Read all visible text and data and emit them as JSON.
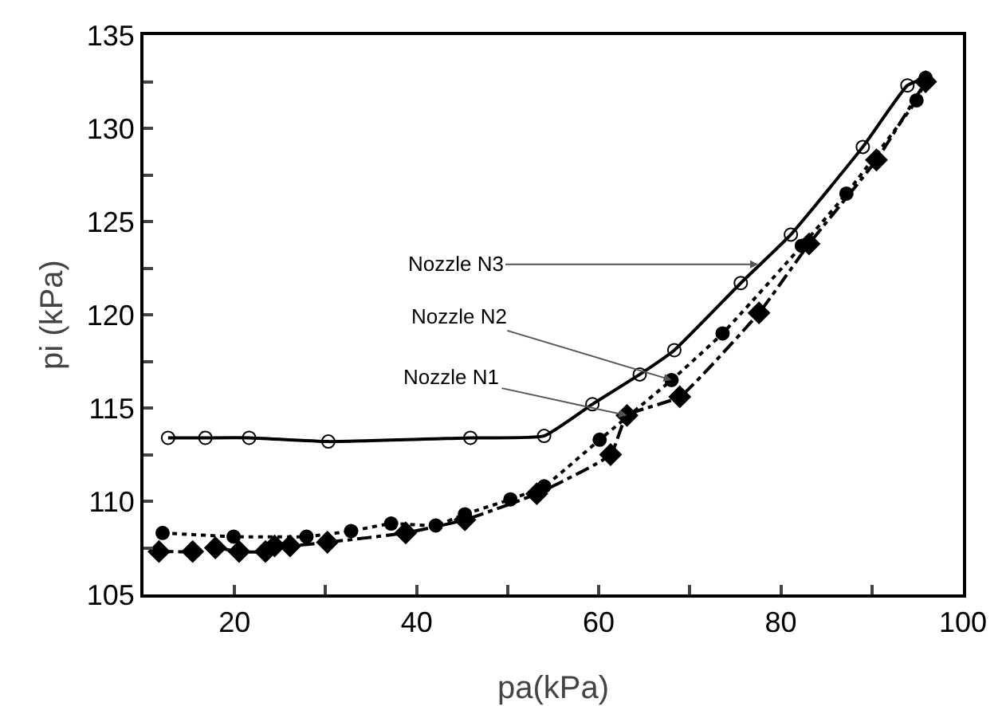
{
  "chart_data": {
    "type": "line",
    "xlabel": "pa(kPa)",
    "ylabel": "pi (kPa)",
    "xlim": [
      10,
      100
    ],
    "xticks": [
      20,
      {
        "value": 30,
        "label": null
      },
      40,
      {
        "value": 50,
        "label": null
      },
      60,
      {
        "value": 70,
        "label": null
      },
      80,
      {
        "value": 90,
        "label": null
      },
      100
    ],
    "ylim": [
      105,
      135
    ],
    "yticks": [
      105,
      {
        "value": 107.5,
        "label": null
      },
      110,
      {
        "value": 112.5,
        "label": null
      },
      115,
      {
        "value": 117.5,
        "label": null
      },
      120,
      {
        "value": 122.5,
        "label": null
      },
      125,
      {
        "value": 127.5,
        "label": null
      },
      130,
      {
        "value": 132.5,
        "label": null
      },
      135
    ],
    "grid": false,
    "series": [
      {
        "color": "#000000",
        "marker": "circle-open",
        "line_style": "solid",
        "x": [
          12.7,
          16.8,
          21.6,
          30.3,
          45.9,
          54.0,
          59.3,
          64.5,
          68.3,
          75.6,
          81.1,
          89.0,
          93.9,
          95.9
        ],
        "values": [
          113.4,
          113.4,
          113.4,
          113.2,
          113.4,
          113.5,
          115.2,
          116.8,
          118.1,
          121.7,
          124.3,
          129.0,
          132.3,
          132.7
        ]
      },
      {
        "color": "#000000",
        "marker": "circle",
        "line_style": "dotted",
        "x": [
          12.1,
          19.9,
          27.9,
          32.8,
          37.2,
          42.1,
          45.3,
          50.3,
          54.0,
          60.1,
          68.0,
          73.6,
          82.3,
          87.2,
          94.9,
          95.9
        ],
        "values": [
          108.3,
          108.1,
          108.1,
          108.4,
          108.8,
          108.7,
          109.3,
          110.1,
          110.8,
          113.3,
          116.5,
          119.0,
          123.7,
          126.5,
          131.5,
          132.6
        ]
      },
      {
        "color": "#000000",
        "marker": "diamond",
        "line_style": "dashed",
        "x": [
          11.7,
          15.4,
          17.9,
          20.5,
          23.4,
          24.4,
          26.1,
          30.2,
          38.8,
          45.3,
          53.2,
          61.3,
          63.1,
          68.9,
          77.6,
          83.1,
          90.5,
          95.9
        ],
        "values": [
          107.3,
          107.3,
          107.5,
          107.3,
          107.3,
          107.6,
          107.6,
          107.8,
          108.3,
          109.0,
          110.4,
          112.5,
          114.6,
          115.6,
          120.1,
          123.8,
          128.3,
          132.5
        ]
      }
    ],
    "annotations": [
      {
        "text": "Nozzle N3",
        "x": 77.5,
        "y": 122.7
      },
      {
        "text": "Nozzle N2",
        "x": 68.0,
        "y": 116.5
      },
      {
        "text": "Nozzle N1",
        "x": 63.1,
        "y": 114.6
      }
    ]
  }
}
